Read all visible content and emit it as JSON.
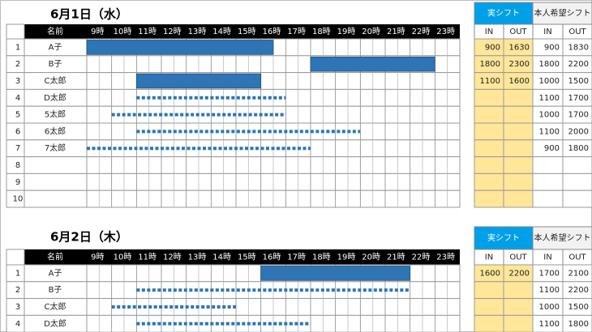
{
  "days": [
    {
      "title": "6月1日（水）",
      "header": {
        "name": "名前",
        "hours": [
          {
            "value": 9,
            "label": "9時"
          },
          {
            "value": 10,
            "label": "10時"
          },
          {
            "value": 11,
            "label": "11時"
          },
          {
            "value": 12,
            "label": "12時"
          },
          {
            "value": 13,
            "label": "13時"
          },
          {
            "value": 14,
            "label": "14時"
          },
          {
            "value": 15,
            "label": "15時"
          },
          {
            "value": 16,
            "label": "16時"
          },
          {
            "value": 17,
            "label": "17時"
          },
          {
            "value": 18,
            "label": "18時"
          },
          {
            "value": 19,
            "label": "19時"
          },
          {
            "value": 20,
            "label": "20時"
          },
          {
            "value": 21,
            "label": "21時"
          },
          {
            "value": 22,
            "label": "22時"
          },
          {
            "value": 23,
            "label": "23時"
          }
        ],
        "actual": "実シフト",
        "hope": "本人希望シフト",
        "actual_in": "IN",
        "actual_out": "OUT",
        "hope_in": "IN",
        "hope_out": "OUT"
      },
      "rows": [
        {
          "no": 1,
          "name": "A子",
          "actual_in": 900,
          "actual_out": 1630,
          "hope_in": 900,
          "hope_out": 1830
        },
        {
          "no": 2,
          "name": "B子",
          "actual_in": 1800,
          "actual_out": 2300,
          "hope_in": 1800,
          "hope_out": 2200
        },
        {
          "no": 3,
          "name": "C太郎",
          "actual_in": 1100,
          "actual_out": 1600,
          "hope_in": 1000,
          "hope_out": 1500
        },
        {
          "no": 4,
          "name": "D太郎",
          "hope_in": 1100,
          "hope_out": 1700
        },
        {
          "no": 5,
          "name": "5太郎",
          "hope_in": 1000,
          "hope_out": 1700
        },
        {
          "no": 6,
          "name": "6太郎",
          "hope_in": 1100,
          "hope_out": 2000
        },
        {
          "no": 7,
          "name": "7太郎",
          "hope_in": 900,
          "hope_out": 1800
        },
        {
          "no": 8
        },
        {
          "no": 9
        },
        {
          "no": 10
        }
      ]
    },
    {
      "title": "6月2日（木）",
      "header": {
        "name": "名前",
        "hours": [
          {
            "value": 9,
            "label": "9時"
          },
          {
            "value": 10,
            "label": "10時"
          },
          {
            "value": 11,
            "label": "11時"
          },
          {
            "value": 12,
            "label": "12時"
          },
          {
            "value": 13,
            "label": "13時"
          },
          {
            "value": 14,
            "label": "14時"
          },
          {
            "value": 15,
            "label": "15時"
          },
          {
            "value": 16,
            "label": "16時"
          },
          {
            "value": 17,
            "label": "17時"
          },
          {
            "value": 18,
            "label": "18時"
          },
          {
            "value": 19,
            "label": "19時"
          },
          {
            "value": 20,
            "label": "20時"
          },
          {
            "value": 21,
            "label": "21時"
          },
          {
            "value": 22,
            "label": "22時"
          },
          {
            "value": 23,
            "label": "23時"
          }
        ],
        "actual": "実シフト",
        "hope": "本人希望シフト",
        "actual_in": "IN",
        "actual_out": "OUT",
        "hope_in": "IN",
        "hope_out": "OUT"
      },
      "rows": [
        {
          "no": 1,
          "name": "A子",
          "actual_in": 1600,
          "actual_out": 2200,
          "hope_in": 1700,
          "hope_out": 2100
        },
        {
          "no": 2,
          "name": "B子",
          "hope_in": 1100,
          "hope_out": 2200
        },
        {
          "no": 3,
          "name": "C太郎",
          "hope_in": 1000,
          "hope_out": 1500
        },
        {
          "no": 4,
          "name": "D太郎",
          "hope_in": 1100,
          "hope_out": 1800
        }
      ]
    }
  ]
}
